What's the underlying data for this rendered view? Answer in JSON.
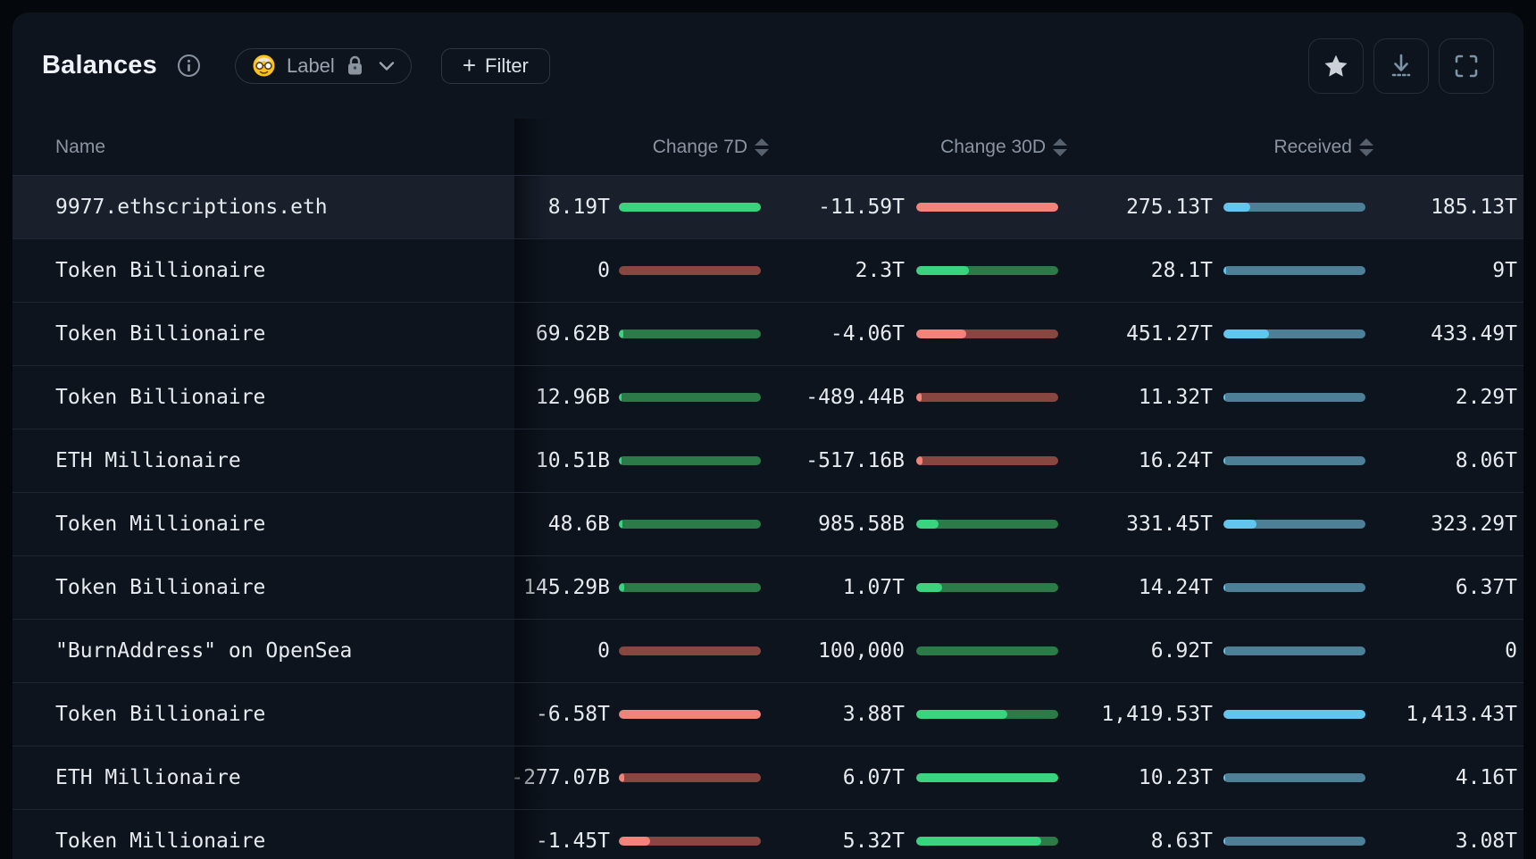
{
  "toolbar": {
    "title": "Balances",
    "label_button": {
      "emoji_icon": "nerd-face",
      "label": "Label",
      "lock_icon": "lock",
      "chevron_icon": "chevron-down"
    },
    "filter_button": {
      "plus": "+",
      "label": "Filter"
    },
    "actions": [
      "favorite-star",
      "download",
      "fullscreen"
    ]
  },
  "table": {
    "columns": {
      "name": {
        "label": "Name",
        "sortable": false
      },
      "change_7d": {
        "label": "Change 7D",
        "sortable": true
      },
      "change_30d": {
        "label": "Change 30D",
        "sortable": true
      },
      "received": {
        "label": "Received",
        "sortable": true
      },
      "last": {
        "label": "",
        "note": "column clipped at right edge, header not visible"
      }
    },
    "rows": [
      {
        "name": "9977.ethscriptions.eth",
        "highlighted": true,
        "change_7d": {
          "value": "8.19T",
          "fill_pct": 100,
          "sign": "pos"
        },
        "change_30d": {
          "value": "-11.59T",
          "fill_pct": 100,
          "sign": "neg"
        },
        "received": {
          "value": "275.13T",
          "fill_pct": 19,
          "sign": "recv"
        },
        "last": "185.13T"
      },
      {
        "name": "Token Billionaire",
        "highlighted": false,
        "change_7d": {
          "value": "0",
          "fill_pct": 0,
          "sign": "neg"
        },
        "change_30d": {
          "value": "2.3T",
          "fill_pct": 37,
          "sign": "pos"
        },
        "received": {
          "value": "28.1T",
          "fill_pct": 2,
          "sign": "recv"
        },
        "last": "9T"
      },
      {
        "name": "Token Billionaire",
        "highlighted": false,
        "change_7d": {
          "value": "69.62B",
          "fill_pct": 3,
          "sign": "pos"
        },
        "change_30d": {
          "value": "-4.06T",
          "fill_pct": 35,
          "sign": "neg"
        },
        "received": {
          "value": "451.27T",
          "fill_pct": 32,
          "sign": "recv"
        },
        "last": "433.49T"
      },
      {
        "name": "Token Billionaire",
        "highlighted": false,
        "change_7d": {
          "value": "12.96B",
          "fill_pct": 2,
          "sign": "pos"
        },
        "change_30d": {
          "value": "-489.44B",
          "fill_pct": 4,
          "sign": "neg"
        },
        "received": {
          "value": "11.32T",
          "fill_pct": 1.2,
          "sign": "recv"
        },
        "last": "2.29T"
      },
      {
        "name": "ETH Millionaire",
        "highlighted": false,
        "change_7d": {
          "value": "10.51B",
          "fill_pct": 2,
          "sign": "pos"
        },
        "change_30d": {
          "value": "-517.16B",
          "fill_pct": 4.5,
          "sign": "neg"
        },
        "received": {
          "value": "16.24T",
          "fill_pct": 1.5,
          "sign": "recv"
        },
        "last": "8.06T"
      },
      {
        "name": "Token Millionaire",
        "highlighted": false,
        "change_7d": {
          "value": "48.6B",
          "fill_pct": 2.5,
          "sign": "pos"
        },
        "change_30d": {
          "value": "985.58B",
          "fill_pct": 16,
          "sign": "pos"
        },
        "received": {
          "value": "331.45T",
          "fill_pct": 23,
          "sign": "recv"
        },
        "last": "323.29T"
      },
      {
        "name": "Token Billionaire",
        "highlighted": false,
        "change_7d": {
          "value": "145.29B",
          "fill_pct": 4,
          "sign": "pos"
        },
        "change_30d": {
          "value": "1.07T",
          "fill_pct": 18,
          "sign": "pos"
        },
        "received": {
          "value": "14.24T",
          "fill_pct": 1.2,
          "sign": "recv"
        },
        "last": "6.37T"
      },
      {
        "name": "\"BurnAddress\" on OpenSea",
        "highlighted": false,
        "change_7d": {
          "value": "0",
          "fill_pct": 0,
          "sign": "neg"
        },
        "change_30d": {
          "value": "100,000",
          "fill_pct": 0,
          "sign": "pos"
        },
        "received": {
          "value": "6.92T",
          "fill_pct": 1,
          "sign": "recv"
        },
        "last": "0"
      },
      {
        "name": "Token Billionaire",
        "highlighted": false,
        "change_7d": {
          "value": "-6.58T",
          "fill_pct": 100,
          "sign": "neg"
        },
        "change_30d": {
          "value": "3.88T",
          "fill_pct": 64,
          "sign": "pos"
        },
        "received": {
          "value": "1,419.53T",
          "fill_pct": 100,
          "sign": "recv"
        },
        "last": "1,413.43T"
      },
      {
        "name": "ETH Millionaire",
        "highlighted": false,
        "change_7d": {
          "value": "-277.07B",
          "fill_pct": 4,
          "sign": "neg"
        },
        "change_30d": {
          "value": "6.07T",
          "fill_pct": 100,
          "sign": "pos"
        },
        "received": {
          "value": "10.23T",
          "fill_pct": 1,
          "sign": "recv"
        },
        "last": "4.16T"
      },
      {
        "name": "Token Millionaire",
        "highlighted": false,
        "change_7d": {
          "value": "-1.45T",
          "fill_pct": 22,
          "sign": "neg"
        },
        "change_30d": {
          "value": "5.32T",
          "fill_pct": 88,
          "sign": "pos"
        },
        "received": {
          "value": "8.63T",
          "fill_pct": 1,
          "sign": "recv"
        },
        "last": "3.08T"
      }
    ]
  },
  "colors": {
    "page_bg": "#04070c",
    "card_bg": "#0e141e",
    "row_highlight_bg": "#19202c",
    "separator": "#1d2631",
    "header_text": "#8b95a2",
    "cell_text": "#e7eaee",
    "bar_positive_bright": "#3bd47e",
    "bar_positive_track": "#2b7a48",
    "bar_negative_bright": "#f2837b",
    "bar_negative_track": "#884641",
    "bar_received_bright": "#62c5ee",
    "bar_received_track": "#4d7f96"
  }
}
